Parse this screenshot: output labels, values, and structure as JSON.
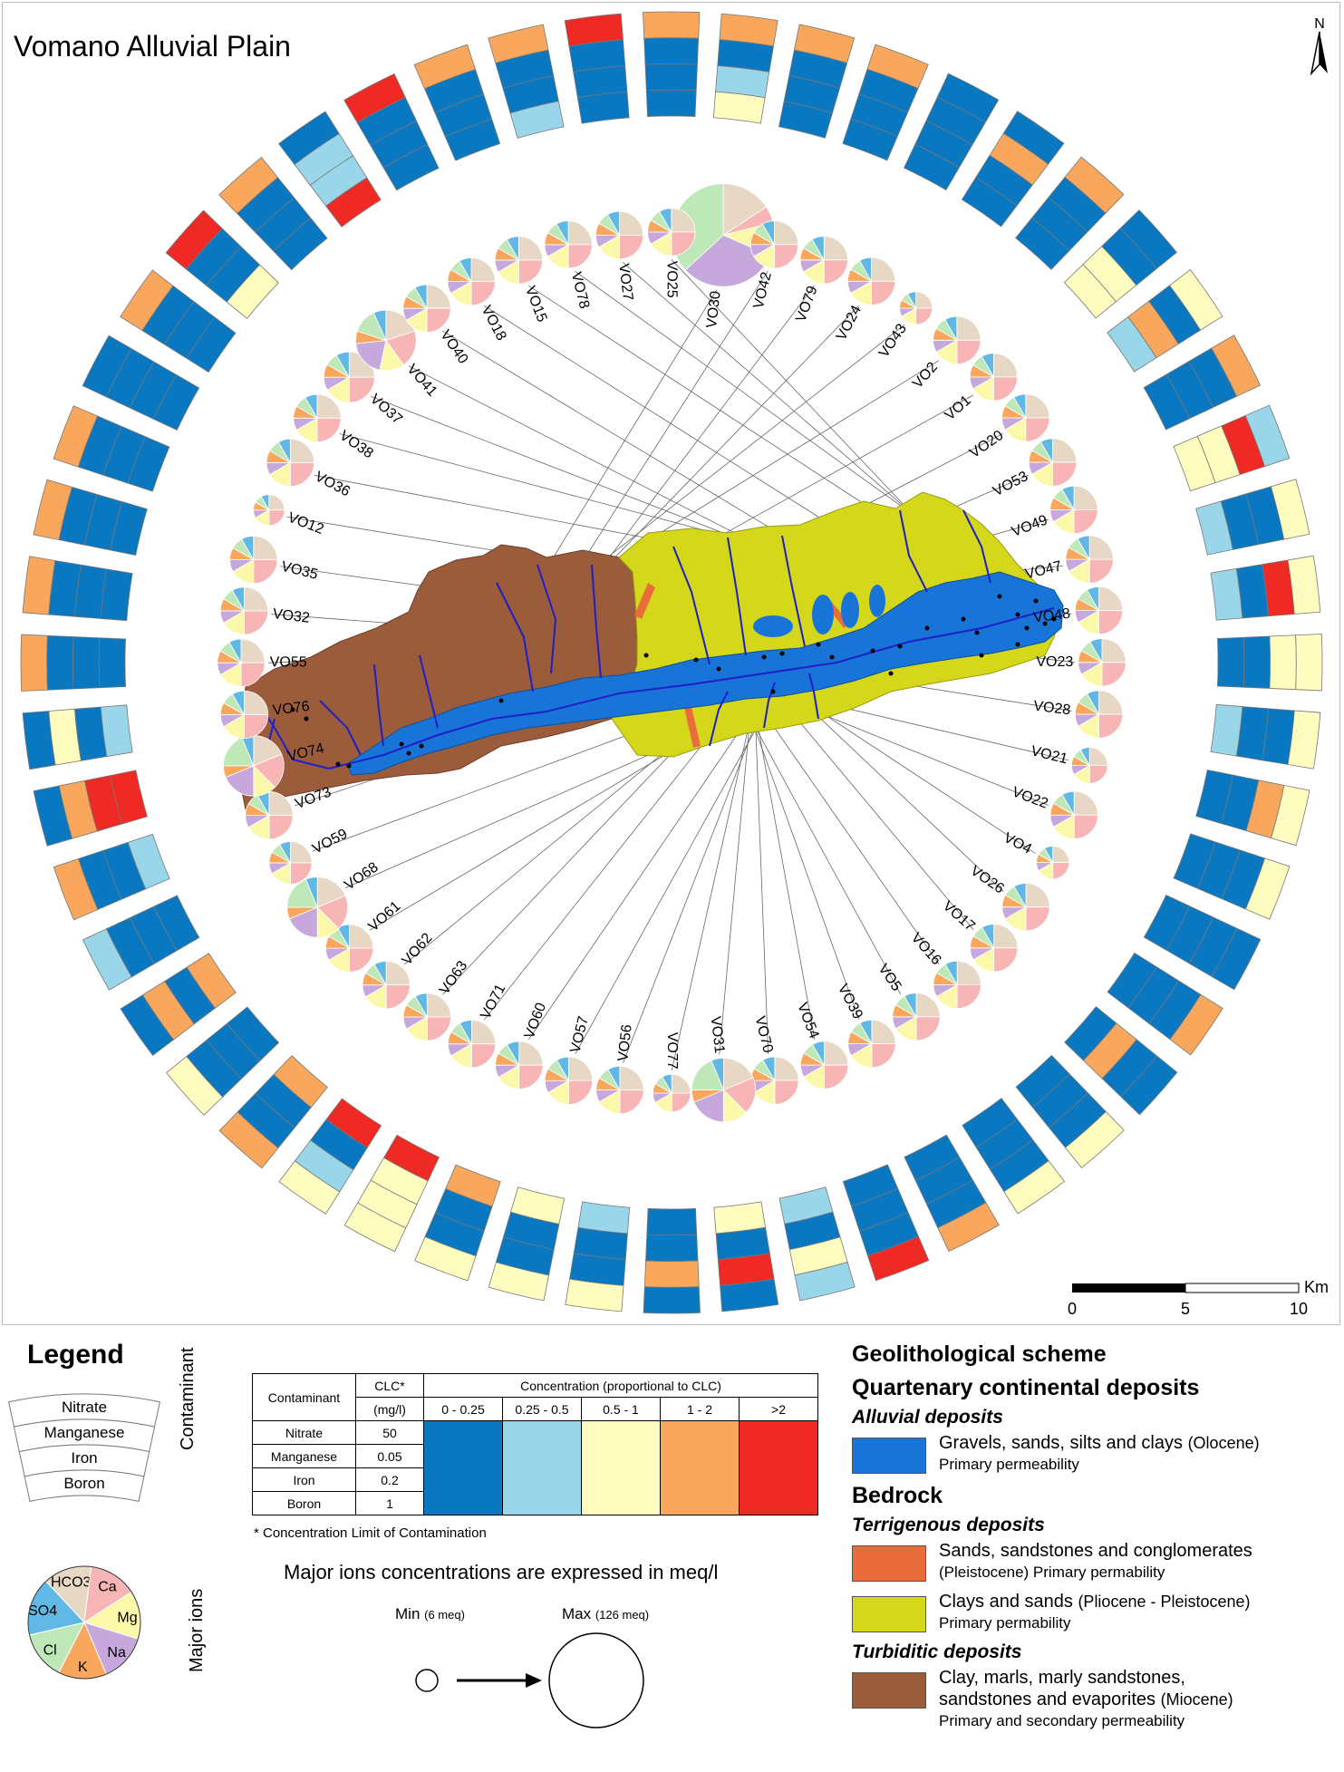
{
  "title": "Vomano Alluvial Plain",
  "north_label": "N",
  "scale_bar": {
    "unit": "Km",
    "ticks": [
      "0",
      "5",
      "10"
    ]
  },
  "colors": {
    "c1": "#0a78c0",
    "c2": "#99d6ea",
    "c3": "#fefcbe",
    "c4": "#f8a75c",
    "c5": "#ef2a25",
    "Ca": "#f8b5b5",
    "Mg": "#fbf8aa",
    "Na": "#c6a8dd",
    "K": "#f8a75c",
    "Cl": "#bfe8b8",
    "SO4": "#62b8e4",
    "HCO3": "#e7d8c6",
    "alluvial": "#1974d8",
    "terrigenous_sands": "#ea6b3c",
    "clays_sands": "#d4d71a",
    "turbiditic": "#9b5c3c"
  },
  "bar_color_keys": [
    "c1",
    "c2",
    "c3",
    "c4",
    "c5"
  ],
  "ion_order": [
    "HCO3",
    "Ca",
    "Mg",
    "Na",
    "K",
    "Cl",
    "SO4"
  ],
  "stations": [
    {
      "label": "VO30",
      "pie": [
        3,
        1,
        2,
        6,
        0,
        7,
        0
      ],
      "size": 2.6,
      "bar": [
        [
          3
        ],
        [
          0
        ],
        [
          1
        ],
        [
          2
        ]
      ]
    },
    {
      "label": "VO42",
      "pie": [
        3,
        3,
        2,
        1,
        1,
        1,
        1
      ],
      "size": 0.9,
      "bar": [
        [
          3
        ],
        [
          0
        ],
        [
          0
        ],
        [
          0
        ]
      ]
    },
    {
      "label": "VO79",
      "pie": [
        3,
        3,
        2,
        1,
        1,
        1,
        1
      ],
      "size": 0.9,
      "bar": [
        [
          3
        ],
        [
          0
        ],
        [
          0
        ],
        [
          0
        ]
      ]
    },
    {
      "label": "VO24",
      "pie": [
        3,
        3,
        2,
        1,
        1,
        1,
        1
      ],
      "size": 0.9,
      "bar": [
        [
          0
        ],
        [
          0
        ],
        [
          0
        ],
        [
          0
        ]
      ]
    },
    {
      "label": "VO43",
      "pie": [
        3,
        3,
        2,
        1,
        1,
        1,
        1
      ],
      "size": 0.45,
      "bar": [
        [
          0
        ],
        [
          3
        ],
        [
          0
        ],
        [
          0
        ]
      ]
    },
    {
      "label": "VO2",
      "pie": [
        3,
        3,
        2,
        1,
        1,
        1,
        1
      ],
      "size": 0.9,
      "bar": [
        [
          3
        ],
        [
          0
        ],
        [
          0
        ],
        [
          0
        ]
      ]
    },
    {
      "label": "VO1",
      "pie": [
        3,
        3,
        2,
        1,
        1,
        1,
        1
      ],
      "size": 0.9,
      "bar": [
        [
          0
        ],
        [
          0
        ],
        [
          2
        ],
        [
          2
        ]
      ]
    },
    {
      "label": "VO20",
      "pie": [
        3,
        3,
        2,
        1,
        1,
        1,
        1
      ],
      "size": 0.9,
      "bar": [
        [
          2
        ],
        [
          0
        ],
        [
          3
        ],
        [
          1
        ]
      ]
    },
    {
      "label": "VO53",
      "pie": [
        3,
        3,
        2,
        1,
        1,
        1,
        1
      ],
      "size": 0.9,
      "bar": [
        [
          3
        ],
        [
          0
        ],
        [
          0
        ],
        [
          0
        ]
      ]
    },
    {
      "label": "VO49",
      "pie": [
        3,
        3,
        2,
        1,
        1,
        1,
        1
      ],
      "size": 0.9,
      "bar": [
        [
          1
        ],
        [
          4
        ],
        [
          2
        ],
        [
          2
        ]
      ]
    },
    {
      "label": "VO47",
      "pie": [
        3,
        3,
        2,
        1,
        1,
        1,
        1
      ],
      "size": 0.9,
      "bar": [
        [
          2
        ],
        [
          0
        ],
        [
          0
        ],
        [
          1
        ]
      ]
    },
    {
      "label": "VO48",
      "pie": [
        3,
        3,
        2,
        1,
        1,
        1,
        1
      ],
      "size": 0.9,
      "bar": [
        [
          2
        ],
        [
          4
        ],
        [
          0
        ],
        [
          1
        ]
      ]
    },
    {
      "label": "VO23",
      "pie": [
        3,
        3,
        2,
        1,
        1,
        1,
        1
      ],
      "size": 0.9,
      "bar": [
        [
          2
        ],
        [
          2
        ],
        [
          0
        ],
        [
          0
        ]
      ]
    },
    {
      "label": "VO28",
      "pie": [
        3,
        3,
        2,
        1,
        1,
        1,
        1
      ],
      "size": 0.9,
      "bar": [
        [
          2
        ],
        [
          0
        ],
        [
          0
        ],
        [
          1
        ]
      ]
    },
    {
      "label": "VO21",
      "pie": [
        3,
        3,
        2,
        1,
        1,
        1,
        1
      ],
      "size": 0.55,
      "bar": [
        [
          2
        ],
        [
          3
        ],
        [
          0
        ],
        [
          0
        ]
      ]
    },
    {
      "label": "VO22",
      "pie": [
        3,
        3,
        2,
        1,
        1,
        1,
        1
      ],
      "size": 0.9,
      "bar": [
        [
          2
        ],
        [
          0
        ],
        [
          0
        ],
        [
          0
        ]
      ]
    },
    {
      "label": "VO4",
      "pie": [
        3,
        3,
        2,
        1,
        1,
        1,
        1
      ],
      "size": 0.45,
      "bar": [
        [
          0
        ],
        [
          0
        ],
        [
          0
        ],
        [
          0
        ]
      ]
    },
    {
      "label": "VO26",
      "pie": [
        3,
        3,
        2,
        1,
        1,
        1,
        1
      ],
      "size": 0.9,
      "bar": [
        [
          3
        ],
        [
          0
        ],
        [
          0
        ],
        [
          0
        ]
      ]
    },
    {
      "label": "VO17",
      "pie": [
        3,
        3,
        2,
        1,
        1,
        1,
        1
      ],
      "size": 0.9,
      "bar": [
        [
          0
        ],
        [
          0
        ],
        [
          3
        ],
        [
          0
        ]
      ]
    },
    {
      "label": "VO16",
      "pie": [
        3,
        3,
        2,
        1,
        1,
        1,
        1
      ],
      "size": 0.9,
      "bar": [
        [
          2
        ],
        [
          0
        ],
        [
          0
        ],
        [
          0
        ]
      ]
    },
    {
      "label": "VO5",
      "pie": [
        3,
        3,
        2,
        1,
        1,
        1,
        1
      ],
      "size": 0.9,
      "bar": [
        [
          2
        ],
        [
          0
        ],
        [
          0
        ],
        [
          0
        ]
      ]
    },
    {
      "label": "VO39",
      "pie": [
        3,
        3,
        2,
        1,
        1,
        1,
        1
      ],
      "size": 0.9,
      "bar": [
        [
          3
        ],
        [
          0
        ],
        [
          0
        ],
        [
          0
        ]
      ]
    },
    {
      "label": "VO54",
      "pie": [
        3,
        3,
        2,
        1,
        1,
        1,
        1
      ],
      "size": 0.9,
      "bar": [
        [
          4
        ],
        [
          0
        ],
        [
          0
        ],
        [
          0
        ]
      ]
    },
    {
      "label": "VO70",
      "pie": [
        3,
        3,
        2,
        1,
        1,
        1,
        1
      ],
      "size": 0.9,
      "bar": [
        [
          1
        ],
        [
          2
        ],
        [
          0
        ],
        [
          1
        ]
      ]
    },
    {
      "label": "VO31",
      "pie": [
        3,
        3,
        2,
        3,
        1,
        3,
        1
      ],
      "size": 1.4,
      "bar": [
        [
          0
        ],
        [
          4
        ],
        [
          0
        ],
        [
          2
        ]
      ]
    },
    {
      "label": "VO77",
      "pie": [
        3,
        3,
        2,
        1,
        1,
        1,
        1
      ],
      "size": 0.6,
      "bar": [
        [
          0
        ],
        [
          3
        ],
        [
          0
        ],
        [
          0
        ]
      ]
    },
    {
      "label": "VO56",
      "pie": [
        3,
        3,
        2,
        1,
        1,
        1,
        1
      ],
      "size": 0.9,
      "bar": [
        [
          2
        ],
        [
          0
        ],
        [
          0
        ],
        [
          1
        ]
      ]
    },
    {
      "label": "VO57",
      "pie": [
        3,
        3,
        2,
        1,
        1,
        1,
        1
      ],
      "size": 0.9,
      "bar": [
        [
          2
        ],
        [
          0
        ],
        [
          0
        ],
        [
          2
        ]
      ]
    },
    {
      "label": "VO60",
      "pie": [
        3,
        3,
        2,
        1,
        1,
        1,
        1
      ],
      "size": 0.9,
      "bar": [
        [
          2
        ],
        [
          0
        ],
        [
          0
        ],
        [
          3
        ]
      ]
    },
    {
      "label": "VO71",
      "pie": [
        3,
        3,
        2,
        1,
        1,
        1,
        1
      ],
      "size": 0.9,
      "bar": [
        [
          2
        ],
        [
          2
        ],
        [
          2
        ],
        [
          4
        ]
      ]
    },
    {
      "label": "VO63",
      "pie": [
        3,
        3,
        2,
        1,
        1,
        1,
        1
      ],
      "size": 0.9,
      "bar": [
        [
          2
        ],
        [
          1
        ],
        [
          0
        ],
        [
          4
        ]
      ]
    },
    {
      "label": "VO62",
      "pie": [
        3,
        3,
        2,
        1,
        1,
        1,
        1
      ],
      "size": 0.9,
      "bar": [
        [
          3
        ],
        [
          0
        ],
        [
          0
        ],
        [
          3
        ]
      ]
    },
    {
      "label": "VO61",
      "pie": [
        3,
        3,
        2,
        1,
        1,
        1,
        1
      ],
      "size": 0.9,
      "bar": [
        [
          2
        ],
        [
          0
        ],
        [
          0
        ],
        [
          0
        ]
      ]
    },
    {
      "label": "VO68",
      "pie": [
        3,
        3,
        2,
        3,
        1,
        3,
        1
      ],
      "size": 1.3,
      "bar": [
        [
          0
        ],
        [
          3
        ],
        [
          0
        ],
        [
          3
        ]
      ]
    },
    {
      "label": "VO59",
      "pie": [
        3,
        3,
        2,
        1,
        1,
        1,
        1
      ],
      "size": 0.75,
      "bar": [
        [
          1
        ],
        [
          0
        ],
        [
          0
        ],
        [
          0
        ]
      ]
    },
    {
      "label": "VO73",
      "pie": [
        3,
        3,
        2,
        1,
        1,
        1,
        1
      ],
      "size": 0.9,
      "bar": [
        [
          3
        ],
        [
          0
        ],
        [
          0
        ],
        [
          1
        ]
      ]
    },
    {
      "label": "VO74",
      "pie": [
        3,
        3,
        2,
        3,
        1,
        3,
        1
      ],
      "size": 1.3,
      "bar": [
        [
          0
        ],
        [
          3
        ],
        [
          4
        ],
        [
          4
        ]
      ]
    },
    {
      "label": "VO76",
      "pie": [
        3,
        3,
        2,
        1,
        1,
        1,
        1
      ],
      "size": 0.9,
      "bar": [
        [
          0
        ],
        [
          2
        ],
        [
          0
        ],
        [
          1
        ]
      ]
    },
    {
      "label": "VO55",
      "pie": [
        3,
        3,
        2,
        1,
        1,
        1,
        1
      ],
      "size": 0.9,
      "bar": [
        [
          3
        ],
        [
          0
        ],
        [
          0
        ],
        [
          0
        ]
      ]
    },
    {
      "label": "VO32",
      "pie": [
        3,
        3,
        2,
        1,
        1,
        1,
        1
      ],
      "size": 0.9,
      "bar": [
        [
          3
        ],
        [
          0
        ],
        [
          0
        ],
        [
          0
        ]
      ]
    },
    {
      "label": "VO35",
      "pie": [
        3,
        3,
        2,
        1,
        1,
        1,
        1
      ],
      "size": 0.9,
      "bar": [
        [
          3
        ],
        [
          0
        ],
        [
          0
        ],
        [
          0
        ]
      ]
    },
    {
      "label": "VO12",
      "pie": [
        3,
        3,
        2,
        1,
        1,
        1,
        1
      ],
      "size": 0.4,
      "bar": [
        [
          3
        ],
        [
          0
        ],
        [
          0
        ],
        [
          0
        ]
      ]
    },
    {
      "label": "VO36",
      "pie": [
        3,
        3,
        2,
        1,
        1,
        1,
        1
      ],
      "size": 0.9,
      "bar": [
        [
          0
        ],
        [
          0
        ],
        [
          0
        ],
        [
          0
        ]
      ]
    },
    {
      "label": "VO38",
      "pie": [
        3,
        3,
        2,
        1,
        1,
        1,
        1
      ],
      "size": 0.9,
      "bar": [
        [
          3
        ],
        [
          0
        ],
        [
          0
        ],
        [
          0
        ]
      ]
    },
    {
      "label": "VO37",
      "pie": [
        3,
        3,
        2,
        1,
        1,
        1,
        1
      ],
      "size": 1.0,
      "bar": [
        [
          4
        ],
        [
          0
        ],
        [
          0
        ],
        [
          2
        ]
      ]
    },
    {
      "label": "VO41",
      "pie": [
        3,
        3,
        2,
        3,
        1,
        2,
        1
      ],
      "size": 1.3,
      "bar": [
        [
          3
        ],
        [
          0
        ],
        [
          0
        ],
        [
          0
        ]
      ]
    },
    {
      "label": "VO40",
      "pie": [
        3,
        3,
        2,
        1,
        1,
        1,
        1
      ],
      "size": 0.9,
      "bar": [
        [
          0
        ],
        [
          1
        ],
        [
          1
        ],
        [
          4
        ]
      ]
    },
    {
      "label": "VO18",
      "pie": [
        3,
        3,
        2,
        1,
        1,
        1,
        1
      ],
      "size": 0.9,
      "bar": [
        [
          4
        ],
        [
          0
        ],
        [
          0
        ],
        [
          0
        ]
      ]
    },
    {
      "label": "VO15",
      "pie": [
        3,
        3,
        2,
        1,
        1,
        1,
        1
      ],
      "size": 0.9,
      "bar": [
        [
          3
        ],
        [
          0
        ],
        [
          0
        ],
        [
          0
        ]
      ]
    },
    {
      "label": "VO78",
      "pie": [
        3,
        3,
        2,
        1,
        1,
        1,
        1
      ],
      "size": 0.9,
      "bar": [
        [
          3
        ],
        [
          0
        ],
        [
          0
        ],
        [
          1
        ]
      ]
    },
    {
      "label": "VO27",
      "pie": [
        3,
        3,
        2,
        1,
        1,
        1,
        1
      ],
      "size": 0.9,
      "bar": [
        [
          4
        ],
        [
          0
        ],
        [
          0
        ],
        [
          0
        ]
      ]
    },
    {
      "label": "VO25",
      "pie": [
        3,
        3,
        2,
        1,
        1,
        1,
        1
      ],
      "size": 0.9,
      "bar": [
        [
          3
        ],
        [
          0
        ],
        [
          0
        ],
        [
          0
        ]
      ]
    }
  ],
  "legend": {
    "title": "Legend",
    "contaminant_side": "Contaminant",
    "major_ions_side": "Major ions",
    "bar_rows": [
      "Nitrate",
      "Manganese",
      "Iron",
      "Boron"
    ],
    "ion_labels": [
      "HCO3",
      "Ca",
      "Mg",
      "Na",
      "K",
      "Cl",
      "SO4"
    ],
    "table": {
      "col_contaminant": "Contaminant",
      "col_clc": "CLC*",
      "col_clc_unit": "(mg/l)",
      "col_conc": "Concentration (proportional to CLC)",
      "classes": [
        "0 - 0.25",
        "0.25 - 0.5",
        "0.5 - 1",
        "1 - 2",
        ">2"
      ],
      "rows": [
        {
          "name": "Nitrate",
          "clc": "50"
        },
        {
          "name": "Manganese",
          "clc": "0.05"
        },
        {
          "name": "Iron",
          "clc": "0.2"
        },
        {
          "name": "Boron",
          "clc": "1"
        }
      ],
      "note": "* Concentration Limit of Contamination"
    },
    "ions_note": "Major ions concentrations are expressed in meq/l",
    "min_label": "Min",
    "min_value": "(6 meq)",
    "max_label": "Max",
    "max_value": "(126 meq)"
  },
  "geo": {
    "title": "Geolithological scheme",
    "quaternary": "Quartenary continental deposits",
    "alluvial_title": "Alluvial deposits",
    "alluvial_text": "Gravels, sands, silts and clays",
    "alluvial_age": "(Olocene)",
    "alluvial_perm": "Primary permeability",
    "bedrock": "Bedrock",
    "terrigenous_title": "Terrigenous deposits",
    "sands_text": "Sands, sandstones and conglomerates",
    "sands_perm": "(Pleistocene) Primary permability",
    "clays_text": "Clays and sands",
    "clays_age": "(Pliocene - Pleistocene)",
    "clays_perm": "Primary permability",
    "turbiditic_title": "Turbiditic deposits",
    "turb_text1": "Clay, marls, marly sandstones,",
    "turb_text2": "sandstones and evaporites",
    "turb_age": "(Miocene)",
    "turb_perm": "Primary and secondary permeability"
  }
}
